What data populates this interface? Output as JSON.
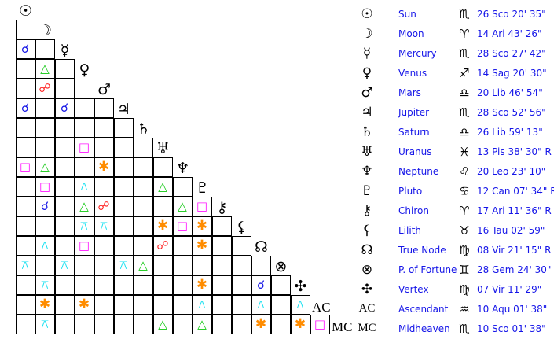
{
  "aspect_colors": {
    "conjunction": "#1414e6",
    "opposition": "#ff1a1a",
    "trine": "#10c810",
    "square": "#ff14ff",
    "sextile": "#ff8c00",
    "quincunx": "#10e0f0"
  },
  "aspect_glyphs": {
    "conjunction": "☌",
    "opposition": "☍",
    "trine": "△",
    "square": "□",
    "sextile": "✱",
    "quincunx": "⚻"
  },
  "planets": [
    {
      "icon": "sun-icon",
      "glyph": "☉",
      "name": "Sun",
      "sign_icon": "scorpio-icon",
      "sign": "♏",
      "position": "26 Sco 20' 35\""
    },
    {
      "icon": "moon-icon",
      "glyph": "☽",
      "name": "Moon",
      "sign_icon": "aries-icon",
      "sign": "♈",
      "position": "14 Ari 43' 26\""
    },
    {
      "icon": "mercury-icon",
      "glyph": "☿",
      "name": "Mercury",
      "sign_icon": "scorpio-icon",
      "sign": "♏",
      "position": "28 Sco 27' 42\""
    },
    {
      "icon": "venus-icon",
      "glyph": "♀",
      "name": "Venus",
      "sign_icon": "sagittarius-icon",
      "sign": "♐",
      "position": "14 Sag 20' 30\""
    },
    {
      "icon": "mars-icon",
      "glyph": "♂",
      "name": "Mars",
      "sign_icon": "libra-icon",
      "sign": "♎",
      "position": "20 Lib 46' 54\""
    },
    {
      "icon": "jupiter-icon",
      "glyph": "♃",
      "name": "Jupiter",
      "sign_icon": "scorpio-icon",
      "sign": "♏",
      "position": "28 Sco 52' 56\""
    },
    {
      "icon": "saturn-icon",
      "glyph": "♄",
      "name": "Saturn",
      "sign_icon": "libra-icon",
      "sign": "♎",
      "position": "26 Lib 59' 13\""
    },
    {
      "icon": "uranus-icon",
      "glyph": "♅",
      "name": "Uranus",
      "sign_icon": "pisces-icon",
      "sign": "♓",
      "position": "13 Pis 38' 30\" R"
    },
    {
      "icon": "neptune-icon",
      "glyph": "♆",
      "name": "Neptune",
      "sign_icon": "leo-icon",
      "sign": "♌",
      "position": "20 Leo 23' 10\""
    },
    {
      "icon": "pluto-icon",
      "glyph": "♇",
      "name": "Pluto",
      "sign_icon": "cancer-icon",
      "sign": "♋",
      "position": "12 Can 07' 34\" R"
    },
    {
      "icon": "chiron-icon",
      "glyph": "⚷",
      "name": "Chiron",
      "sign_icon": "aries-icon",
      "sign": "♈",
      "position": "17 Ari 11' 36\" R"
    },
    {
      "icon": "lilith-icon",
      "glyph": "⚸",
      "name": "Lilith",
      "sign_icon": "taurus-icon",
      "sign": "♉",
      "position": "16 Tau 02' 59\""
    },
    {
      "icon": "true-node-icon",
      "glyph": "☊",
      "name": "True Node",
      "sign_icon": "virgo-icon",
      "sign": "♍",
      "position": "08 Vir 21' 15\" R"
    },
    {
      "icon": "part-of-fortune-icon",
      "glyph": "⊗",
      "name": "P. of Fortune",
      "sign_icon": "gemini-icon",
      "sign": "♊",
      "position": "28 Gem 24' 30\""
    },
    {
      "icon": "vertex-icon",
      "glyph": "✣",
      "name": "Vertex",
      "sign_icon": "virgo-icon",
      "sign": "♍",
      "position": "07 Vir 11' 29\""
    },
    {
      "icon": "ascendant-icon",
      "glyph": "AC",
      "name": "Ascendant",
      "sign_icon": "aquarius-icon",
      "sign": "♒",
      "position": "10 Aqu 01' 38\""
    },
    {
      "icon": "midheaven-icon",
      "glyph": "MC",
      "name": "Midheaven",
      "sign_icon": "scorpio-icon",
      "sign": "♏",
      "position": "10 Sco 01' 38\""
    }
  ],
  "aspects": [
    {
      "row": "Mercury",
      "col": "Sun",
      "type": "conjunction"
    },
    {
      "row": "Venus",
      "col": "Moon",
      "type": "trine"
    },
    {
      "row": "Mars",
      "col": "Moon",
      "type": "opposition"
    },
    {
      "row": "Jupiter",
      "col": "Sun",
      "type": "conjunction"
    },
    {
      "row": "Jupiter",
      "col": "Mercury",
      "type": "conjunction"
    },
    {
      "row": "Uranus",
      "col": "Venus",
      "type": "square"
    },
    {
      "row": "Neptune",
      "col": "Sun",
      "type": "square"
    },
    {
      "row": "Neptune",
      "col": "Moon",
      "type": "trine"
    },
    {
      "row": "Neptune",
      "col": "Mars",
      "type": "sextile"
    },
    {
      "row": "Pluto",
      "col": "Moon",
      "type": "square"
    },
    {
      "row": "Pluto",
      "col": "Venus",
      "type": "quincunx"
    },
    {
      "row": "Pluto",
      "col": "Uranus",
      "type": "trine"
    },
    {
      "row": "Chiron",
      "col": "Moon",
      "type": "conjunction"
    },
    {
      "row": "Chiron",
      "col": "Venus",
      "type": "trine"
    },
    {
      "row": "Chiron",
      "col": "Mars",
      "type": "opposition"
    },
    {
      "row": "Chiron",
      "col": "Neptune",
      "type": "trine"
    },
    {
      "row": "Chiron",
      "col": "Pluto",
      "type": "square"
    },
    {
      "row": "Lilith",
      "col": "Venus",
      "type": "quincunx"
    },
    {
      "row": "Lilith",
      "col": "Mars",
      "type": "quincunx"
    },
    {
      "row": "Lilith",
      "col": "Uranus",
      "type": "sextile"
    },
    {
      "row": "Lilith",
      "col": "Neptune",
      "type": "square"
    },
    {
      "row": "Lilith",
      "col": "Pluto",
      "type": "sextile"
    },
    {
      "row": "True Node",
      "col": "Moon",
      "type": "quincunx"
    },
    {
      "row": "True Node",
      "col": "Venus",
      "type": "square"
    },
    {
      "row": "True Node",
      "col": "Uranus",
      "type": "opposition"
    },
    {
      "row": "True Node",
      "col": "Pluto",
      "type": "sextile"
    },
    {
      "row": "P. of Fortune",
      "col": "Sun",
      "type": "quincunx"
    },
    {
      "row": "P. of Fortune",
      "col": "Mercury",
      "type": "quincunx"
    },
    {
      "row": "P. of Fortune",
      "col": "Jupiter",
      "type": "quincunx"
    },
    {
      "row": "P. of Fortune",
      "col": "Saturn",
      "type": "trine"
    },
    {
      "row": "Vertex",
      "col": "Moon",
      "type": "quincunx"
    },
    {
      "row": "Vertex",
      "col": "Pluto",
      "type": "sextile"
    },
    {
      "row": "Vertex",
      "col": "True Node",
      "type": "conjunction"
    },
    {
      "row": "Ascendant",
      "col": "Moon",
      "type": "sextile"
    },
    {
      "row": "Ascendant",
      "col": "Venus",
      "type": "sextile"
    },
    {
      "row": "Ascendant",
      "col": "Pluto",
      "type": "quincunx"
    },
    {
      "row": "Ascendant",
      "col": "True Node",
      "type": "quincunx"
    },
    {
      "row": "Ascendant",
      "col": "Vertex",
      "type": "quincunx"
    },
    {
      "row": "Midheaven",
      "col": "Moon",
      "type": "quincunx"
    },
    {
      "row": "Midheaven",
      "col": "Uranus",
      "type": "trine"
    },
    {
      "row": "Midheaven",
      "col": "Pluto",
      "type": "trine"
    },
    {
      "row": "Midheaven",
      "col": "True Node",
      "type": "sextile"
    },
    {
      "row": "Midheaven",
      "col": "Vertex",
      "type": "sextile"
    },
    {
      "row": "Midheaven",
      "col": "Ascendant",
      "type": "square"
    }
  ]
}
